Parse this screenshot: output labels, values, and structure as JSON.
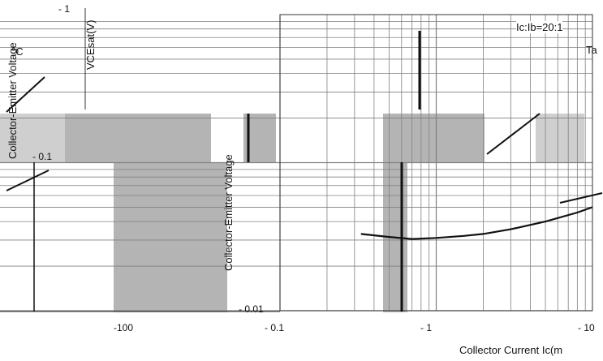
{
  "chart_data": {
    "type": "line",
    "title": "",
    "annotation": "Ic:Ib=20:1",
    "xlabel": "Collector Current   Ic(m",
    "ylabel": "Collector-Emitter Voltage",
    "ylabel_unit": "VCEsat(V)",
    "xscale": "log",
    "yscale": "log",
    "xlim": [
      0.1,
      10
    ],
    "ylim": [
      0.01,
      1
    ],
    "x_ticks": [
      {
        "label": "- 0.1",
        "value": 0.1
      },
      {
        "label": "- 1",
        "value": 1
      },
      {
        "label": "- 10",
        "value": 10
      }
    ],
    "y_ticks": [
      {
        "label": "- 1",
        "value": 1
      },
      {
        "label": "- 0.1",
        "value": 0.1
      },
      {
        "label": "- 0.01",
        "value": 0.01
      }
    ],
    "stray_labels": [
      "-100",
      "Ta",
      "°C"
    ],
    "grid": true,
    "series": [
      {
        "x": [
          0.33,
          0.5,
          0.7,
          1.0,
          1.5,
          2.0,
          3.0,
          5.0,
          8.0,
          10.0
        ],
        "y": [
          0.033,
          0.0315,
          0.0305,
          0.031,
          0.032,
          0.033,
          0.0355,
          0.04,
          0.046,
          0.05
        ]
      }
    ],
    "colors": {
      "line": "#111111",
      "grid": "#808080",
      "artifact": "#b4b4b4"
    }
  }
}
